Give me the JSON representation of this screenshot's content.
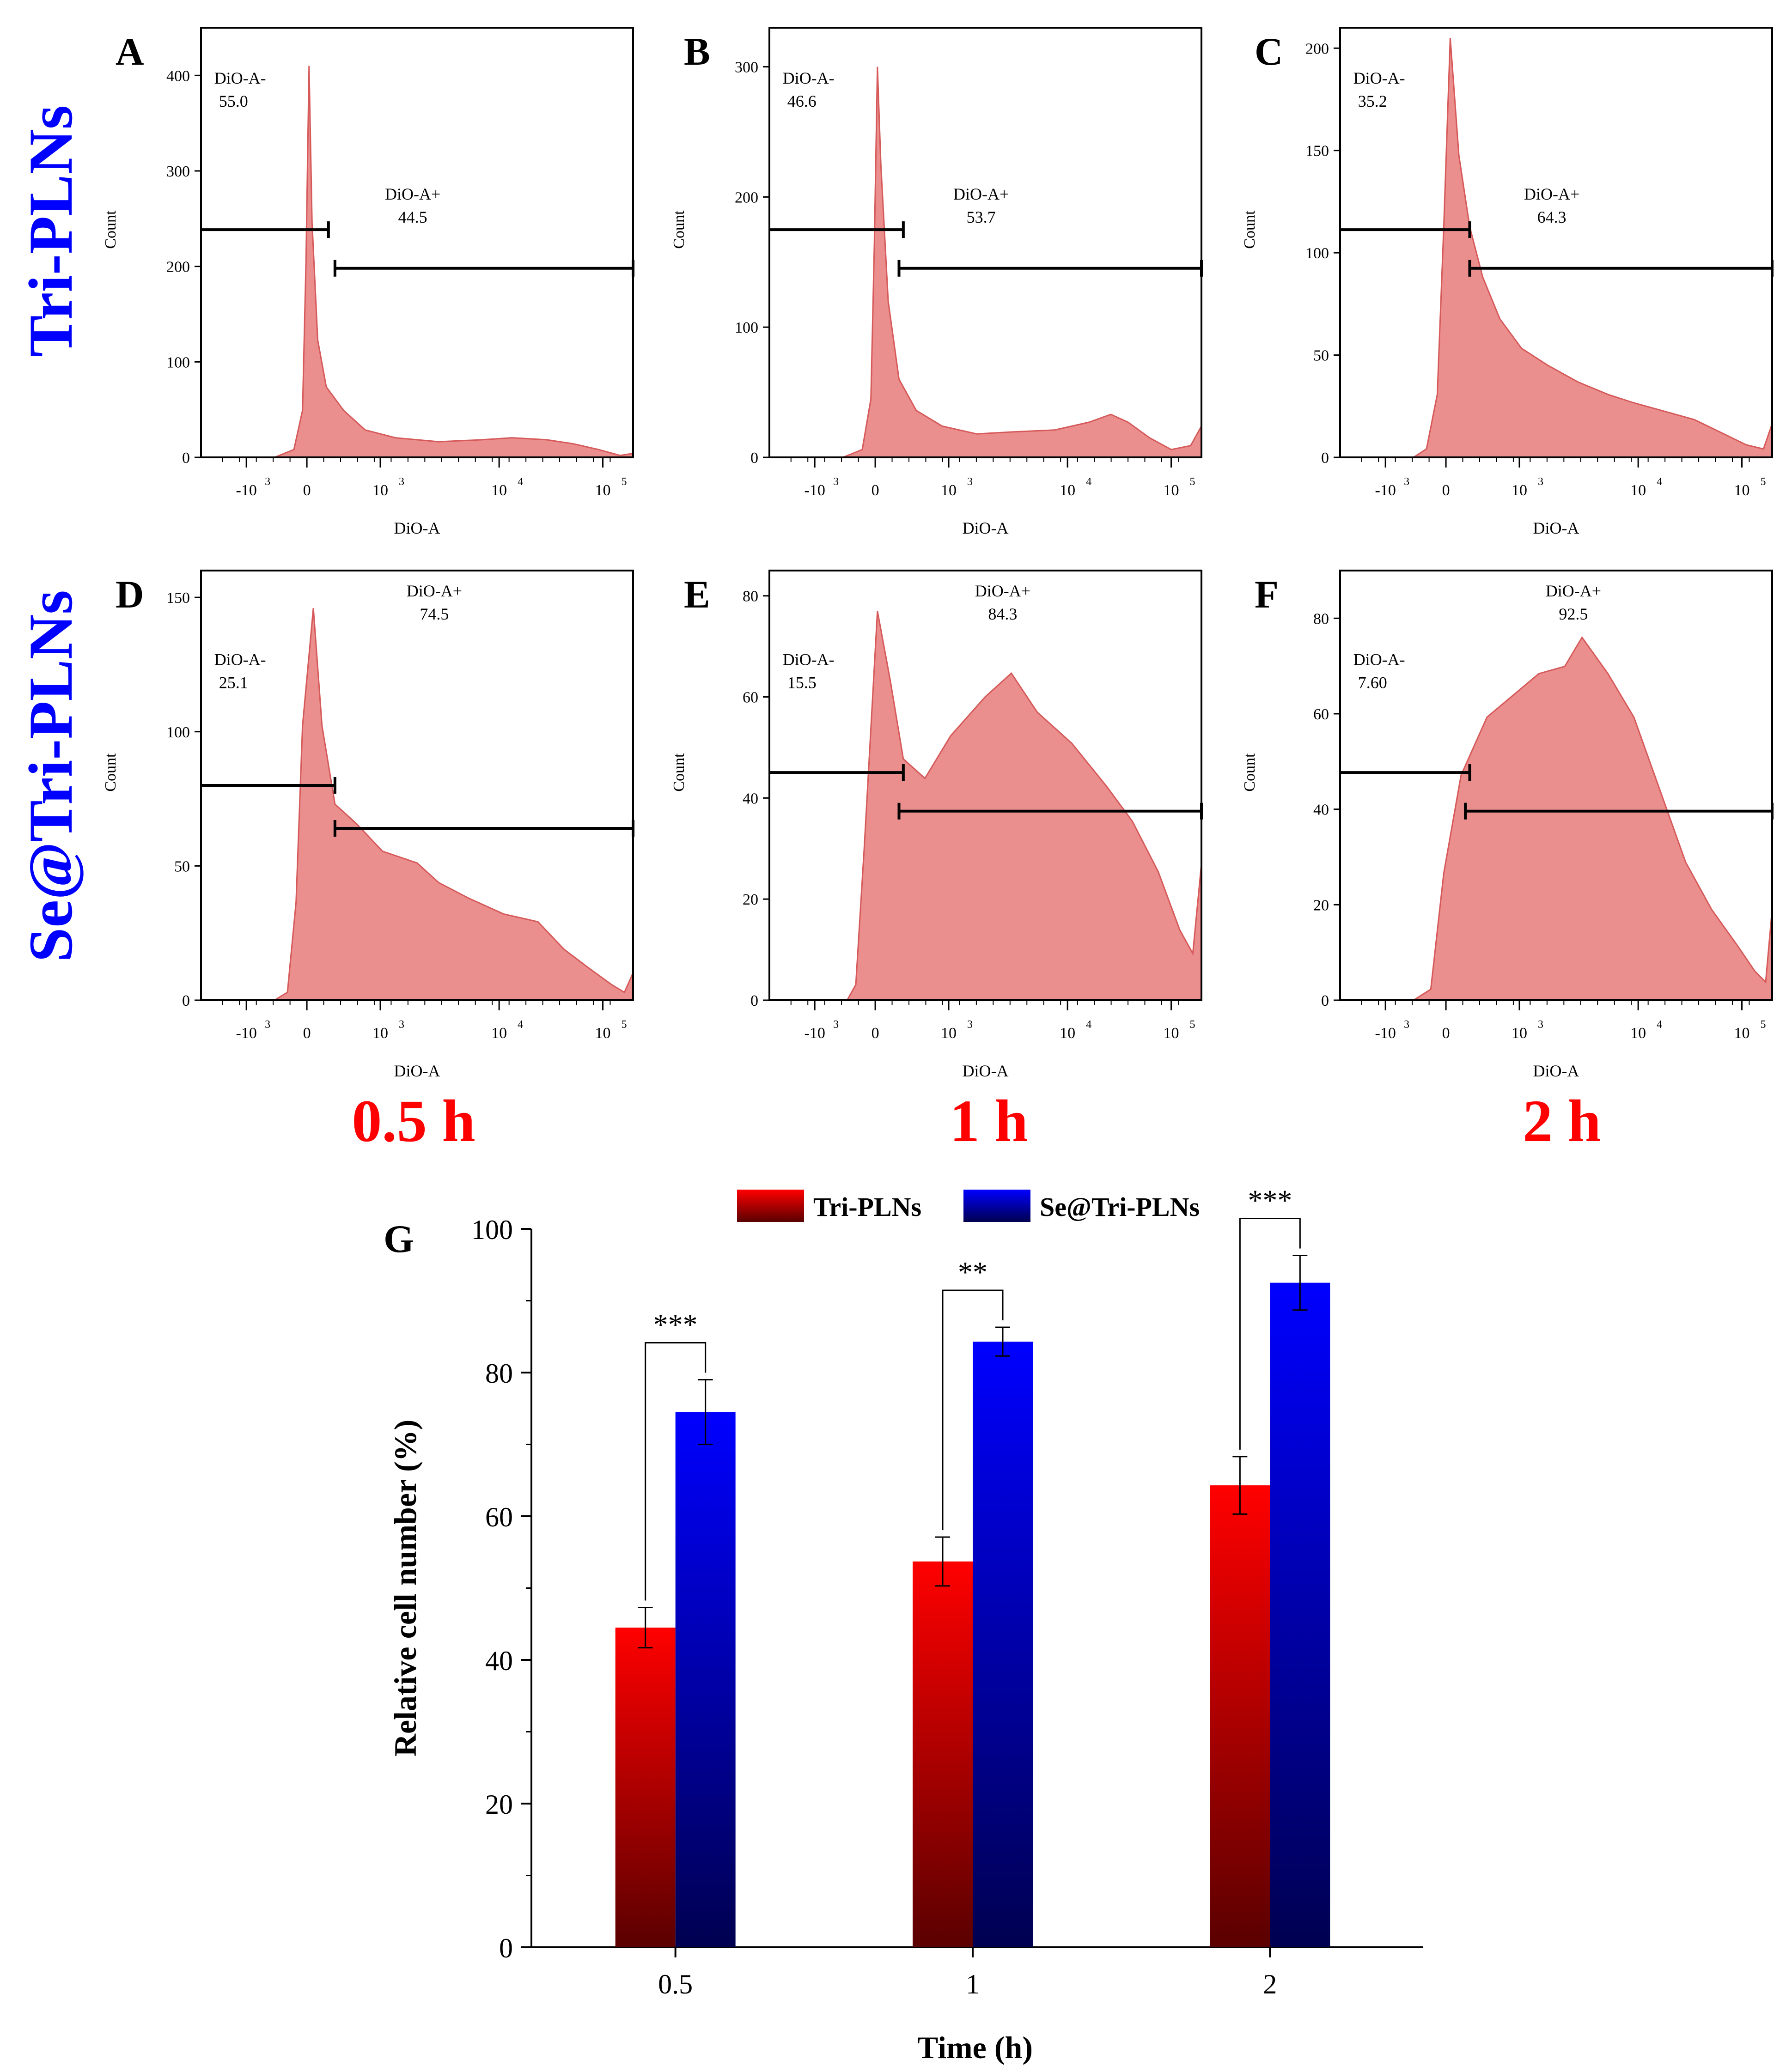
{
  "colors": {
    "hist_fill": "#ea8e8e",
    "hist_stroke": "#d65a5a",
    "tri_top": "#ff0000",
    "tri_bottom": "#5a0000",
    "se_top": "#0000ff",
    "se_bottom": "#000050",
    "row_label": "#0000ff",
    "time_label": "#ff0000"
  },
  "row_labels": [
    "Tri-PLNs",
    "Se@Tri-PLNs"
  ],
  "time_labels": [
    "0.5 h",
    "1 h",
    "2 h"
  ],
  "histogram_axis": {
    "xlabel": "DiO-A",
    "ylabel": "Count",
    "x_ticks": [
      "-10",
      "0",
      "10",
      "10",
      "10",
      "10"
    ],
    "x_tick_exps": [
      "3",
      "",
      "3",
      "4",
      "5"
    ]
  },
  "chart_data": [
    {
      "type": "area",
      "panel": "A",
      "title": "A",
      "xlabel": "DiO-A",
      "ylabel": "Count",
      "ylim": [
        0,
        450
      ],
      "yticks": [
        0,
        100,
        200,
        300,
        400
      ],
      "gate_neg": {
        "label": "DiO-A-",
        "value": "55.0"
      },
      "gate_pos": {
        "label": "DiO-A+",
        "value": "44.5"
      },
      "peak": 410
    },
    {
      "type": "area",
      "panel": "B",
      "title": "B",
      "xlabel": "DiO-A",
      "ylabel": "Count",
      "ylim": [
        0,
        330
      ],
      "yticks": [
        0,
        100,
        200,
        300
      ],
      "gate_neg": {
        "label": "DiO-A-",
        "value": "46.6"
      },
      "gate_pos": {
        "label": "DiO-A+",
        "value": "53.7"
      },
      "peak": 300
    },
    {
      "type": "area",
      "panel": "C",
      "title": "C",
      "xlabel": "DiO-A",
      "ylabel": "Count",
      "ylim": [
        0,
        210
      ],
      "yticks": [
        0,
        50,
        100,
        150,
        200
      ],
      "gate_neg": {
        "label": "DiO-A-",
        "value": "35.2"
      },
      "gate_pos": {
        "label": "DiO-A+",
        "value": "64.3"
      },
      "peak": 205
    },
    {
      "type": "area",
      "panel": "D",
      "title": "D",
      "xlabel": "DiO-A",
      "ylabel": "Count",
      "ylim": [
        0,
        160
      ],
      "yticks": [
        0,
        50,
        100,
        150
      ],
      "gate_neg": {
        "label": "DiO-A-",
        "value": "25.1"
      },
      "gate_pos": {
        "label": "DiO-A+",
        "value": "74.5"
      },
      "peak": 146
    },
    {
      "type": "area",
      "panel": "E",
      "title": "E",
      "xlabel": "DiO-A",
      "ylabel": "Count",
      "ylim": [
        0,
        85
      ],
      "yticks": [
        0,
        20,
        40,
        60,
        80
      ],
      "gate_neg": {
        "label": "DiO-A-",
        "value": "15.5"
      },
      "gate_pos": {
        "label": "DiO-A+",
        "value": "84.3"
      },
      "peak": 77
    },
    {
      "type": "area",
      "panel": "F",
      "title": "F",
      "xlabel": "DiO-A",
      "ylabel": "Count",
      "ylim": [
        0,
        90
      ],
      "yticks": [
        0,
        20,
        40,
        60,
        80
      ],
      "gate_neg": {
        "label": "DiO-A-",
        "value": "7.60"
      },
      "gate_pos": {
        "label": "DiO-A+",
        "value": "92.5"
      },
      "peak": 76
    },
    {
      "type": "bar",
      "panel": "G",
      "title": "G",
      "xlabel": "Time (h)",
      "ylabel": "Relative cell number (%)",
      "categories": [
        "0.5",
        "1",
        "2"
      ],
      "ylim": [
        0,
        100
      ],
      "yticks": [
        0,
        20,
        40,
        60,
        80,
        100
      ],
      "series": [
        {
          "name": "Tri-PLNs",
          "values": [
            44.5,
            53.7,
            64.3
          ],
          "errors": [
            2.8,
            3.4,
            4.0
          ]
        },
        {
          "name": "Se@Tri-PLNs",
          "values": [
            74.5,
            84.3,
            92.5
          ],
          "errors": [
            4.5,
            2.0,
            3.8
          ]
        }
      ],
      "significance": [
        "***",
        "**",
        "***"
      ]
    }
  ]
}
